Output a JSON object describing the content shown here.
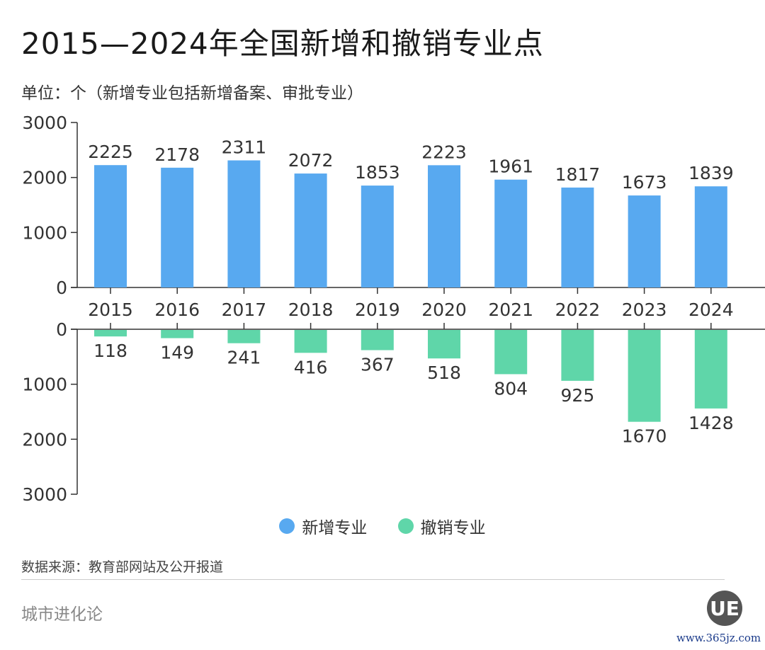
{
  "title": "2015—2024年全国新增和撤销专业点",
  "subtitle": "单位：个（新增专业包括新增备案、审批专业）",
  "source": "数据来源：教育部网站及公开报道",
  "brand": "城市进化论",
  "logo_text": "UE",
  "site": "www.365jz.com",
  "colors": {
    "added": "#58a9f0",
    "revoked": "#5fd6a9"
  },
  "chart_data": {
    "type": "bar",
    "categories": [
      "2015",
      "2016",
      "2017",
      "2018",
      "2019",
      "2020",
      "2021",
      "2022",
      "2023",
      "2024"
    ],
    "series": [
      {
        "name": "新增专业",
        "values": [
          2225,
          2178,
          2311,
          2072,
          1853,
          2223,
          1961,
          1817,
          1673,
          1839
        ]
      },
      {
        "name": "撤销专业",
        "values": [
          118,
          149,
          241,
          416,
          367,
          518,
          804,
          925,
          1670,
          1428
        ]
      }
    ],
    "upper_ylim": [
      0,
      3000
    ],
    "lower_ylim": [
      0,
      3000
    ],
    "yticks": [
      "0",
      "1000",
      "2000",
      "3000"
    ],
    "legend": "bottom-center",
    "grid": false
  }
}
